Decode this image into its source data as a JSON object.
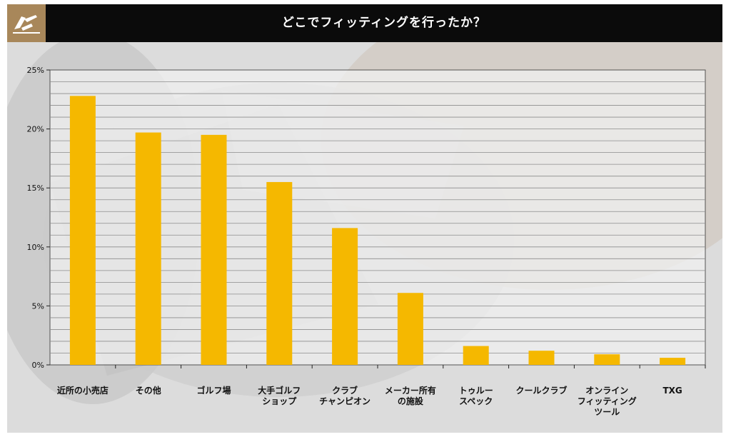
{
  "header": {
    "title": "どこでフィッティングを行ったか？",
    "logo_icon": "golfer-swing-logo-icon"
  },
  "colors": {
    "bar": "#f5b800",
    "header_bg": "#0b0b0b",
    "logo_bg": "#a8875a",
    "plot_bg": "#f2f2f2",
    "grid": "#8c8c8c"
  },
  "chart_data": {
    "type": "bar",
    "title": "どこでフィッティングを行ったか？",
    "xlabel": "",
    "ylabel": "",
    "ylim": [
      0,
      25
    ],
    "yticks": [
      "0%",
      "5%",
      "10%",
      "15%",
      "20%",
      "25%"
    ],
    "grid": true,
    "categories": [
      "近所の小売店",
      "その他",
      "ゴルフ場",
      "大手ゴルフ\nショップ",
      "クラブ\nチャンピオン",
      "メーカー所有\nの施設",
      "トゥルー\nスペック",
      "クールクラブ",
      "オンライン\nフィッティング\nツール",
      "TXG"
    ],
    "values": [
      22.8,
      19.7,
      19.5,
      15.5,
      11.6,
      6.1,
      1.6,
      1.2,
      0.9,
      0.6
    ]
  }
}
